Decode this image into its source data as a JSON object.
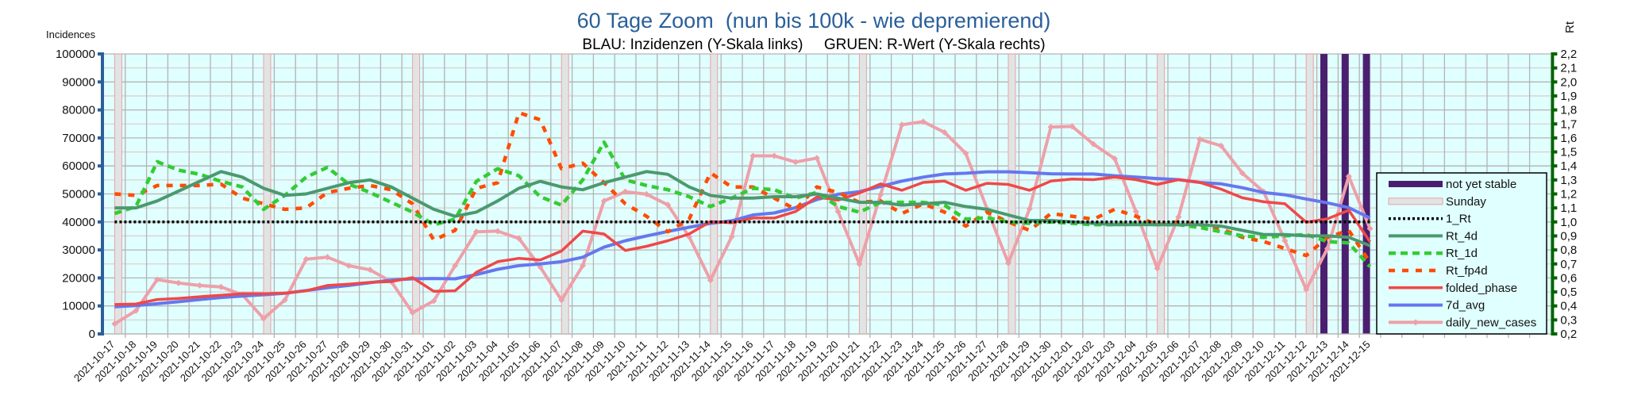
{
  "chart_data": {
    "type": "line",
    "title": "60 Tage Zoom  (nun bis 100k - wie depremierend)",
    "subtitle": "BLAU: Inzidenzen (Y-Skala links)     GRUEN: R-Wert (Y-Skala rechts)",
    "ylabel_left": "Incidences",
    "ylabel_right": "Rt",
    "ylim_left": [
      0,
      100000
    ],
    "ylim_right": [
      0.2,
      2.2
    ],
    "yticks_left": [
      "0",
      "10000",
      "20000",
      "30000",
      "40000",
      "50000",
      "60000",
      "70000",
      "80000",
      "90000",
      "100000"
    ],
    "yticks_right": [
      "0,2",
      "0,3",
      "0,4",
      "0,5",
      "0,6",
      "0,7",
      "0,8",
      "0,9",
      "1,0",
      "1,1",
      "1,2",
      "1,3",
      "1,4",
      "1,5",
      "1,6",
      "1,7",
      "1,8",
      "1,9",
      "2,0",
      "2,1",
      "2,2"
    ],
    "grid": true,
    "legend_position": "right",
    "extra_empty_categories": 8,
    "categories": [
      "2021-10-17",
      "2021-10-18",
      "2021-10-19",
      "2021-10-20",
      "2021-10-21",
      "2021-10-22",
      "2021-10-23",
      "2021-10-24",
      "2021-10-25",
      "2021-10-26",
      "2021-10-27",
      "2021-10-28",
      "2021-10-29",
      "2021-10-30",
      "2021-10-31",
      "2021-11-01",
      "2021-11-02",
      "2021-11-03",
      "2021-11-04",
      "2021-11-05",
      "2021-11-06",
      "2021-11-07",
      "2021-11-08",
      "2021-11-09",
      "2021-11-10",
      "2021-11-11",
      "2021-11-12",
      "2021-11-13",
      "2021-11-14",
      "2021-11-15",
      "2021-11-16",
      "2021-11-17",
      "2021-11-18",
      "2021-11-19",
      "2021-11-20",
      "2021-11-21",
      "2021-11-22",
      "2021-11-23",
      "2021-11-24",
      "2021-11-25",
      "2021-11-26",
      "2021-11-27",
      "2021-11-28",
      "2021-11-29",
      "2021-11-30",
      "2021-12-01",
      "2021-12-02",
      "2021-12-03",
      "2021-12-04",
      "2021-12-05",
      "2021-12-06",
      "2021-12-07",
      "2021-12-08",
      "2021-12-09",
      "2021-12-10",
      "2021-12-11",
      "2021-12-12",
      "2021-12-13",
      "2021-12-14",
      "2021-12-15"
    ],
    "bars": [
      {
        "name": "not yet stable",
        "color": "#4b1f6f",
        "axis": "left",
        "categories": [
          "2021-12-13",
          "2021-12-14",
          "2021-12-15"
        ],
        "value": 100000
      },
      {
        "name": "Sunday",
        "color": "#e0e4e4",
        "edge": "#f0a0a0",
        "axis": "left",
        "categories": [
          "2021-10-17",
          "2021-10-24",
          "2021-10-31",
          "2021-11-07",
          "2021-11-14",
          "2021-11-21",
          "2021-11-28",
          "2021-12-05",
          "2021-12-12"
        ],
        "value": 100000
      }
    ],
    "series": [
      {
        "name": "1_Rt",
        "axis": "right",
        "color": "#000000",
        "style": "dotted",
        "values": [
          1,
          1,
          1,
          1,
          1,
          1,
          1,
          1,
          1,
          1,
          1,
          1,
          1,
          1,
          1,
          1,
          1,
          1,
          1,
          1,
          1,
          1,
          1,
          1,
          1,
          1,
          1,
          1,
          1,
          1,
          1,
          1,
          1,
          1,
          1,
          1,
          1,
          1,
          1,
          1,
          1,
          1,
          1,
          1,
          1,
          1,
          1,
          1,
          1,
          1,
          1,
          1,
          1,
          1,
          1,
          1,
          1,
          1,
          1,
          1
        ]
      },
      {
        "name": "Rt_4d",
        "axis": "right",
        "color": "#4a9a6e",
        "style": "solid",
        "values": [
          1.1,
          1.1,
          1.15,
          1.22,
          1.29,
          1.36,
          1.32,
          1.24,
          1.19,
          1.2,
          1.24,
          1.28,
          1.3,
          1.25,
          1.17,
          1.09,
          1.04,
          1.07,
          1.15,
          1.24,
          1.29,
          1.25,
          1.23,
          1.28,
          1.32,
          1.36,
          1.34,
          1.25,
          1.19,
          1.17,
          1.17,
          1.18,
          1.18,
          1.2,
          1.17,
          1.14,
          1.14,
          1.12,
          1.13,
          1.14,
          1.11,
          1.09,
          1.05,
          1.01,
          1.01,
          1.0,
          0.99,
          0.98,
          0.98,
          0.98,
          0.98,
          0.98,
          0.97,
          0.94,
          0.91,
          0.91,
          0.9,
          0.9,
          0.89,
          0.83
        ]
      },
      {
        "name": "Rt_1d",
        "axis": "right",
        "color": "#33cc33",
        "style": "dashed",
        "values": [
          1.06,
          1.11,
          1.43,
          1.37,
          1.34,
          1.29,
          1.25,
          1.09,
          1.19,
          1.32,
          1.39,
          1.27,
          1.21,
          1.14,
          1.07,
          0.98,
          1.02,
          1.29,
          1.38,
          1.33,
          1.18,
          1.12,
          1.3,
          1.57,
          1.3,
          1.26,
          1.23,
          1.18,
          1.11,
          1.17,
          1.24,
          1.23,
          1.17,
          1.21,
          1.11,
          1.07,
          1.14,
          1.14,
          1.14,
          1.12,
          1.02,
          1.03,
          1.0,
          0.99,
          1.0,
          0.99,
          0.98,
          0.98,
          0.99,
          0.98,
          0.98,
          0.96,
          0.93,
          0.9,
          0.89,
          0.9,
          0.91,
          0.86,
          0.85,
          0.68
        ]
      },
      {
        "name": "Rt_fp4d",
        "axis": "right",
        "color": "#ff4c00",
        "style": "dashed-wide",
        "values": [
          1.2,
          1.19,
          1.26,
          1.26,
          1.26,
          1.27,
          1.17,
          1.13,
          1.09,
          1.1,
          1.21,
          1.24,
          1.26,
          1.23,
          1.13,
          0.87,
          0.94,
          1.24,
          1.28,
          1.78,
          1.73,
          1.38,
          1.42,
          1.28,
          1.13,
          1.04,
          0.93,
          1.02,
          1.35,
          1.25,
          1.25,
          1.17,
          1.09,
          1.25,
          1.21,
          1.14,
          1.15,
          1.06,
          1.13,
          1.07,
          0.97,
          1.07,
          1.0,
          0.94,
          1.06,
          1.04,
          1.02,
          1.09,
          1.04,
          0.98,
          1.0,
          0.98,
          0.95,
          0.89,
          0.86,
          0.81,
          0.76,
          0.89,
          0.94,
          0.71
        ]
      },
      {
        "name": "folded_phase",
        "axis": "left",
        "color": "#f04848",
        "style": "solid",
        "values": [
          10500,
          10700,
          12300,
          12700,
          13300,
          13800,
          14400,
          14400,
          14600,
          15400,
          17300,
          17800,
          18400,
          18700,
          20100,
          15200,
          15400,
          22000,
          25800,
          27000,
          26400,
          29600,
          36700,
          35700,
          29800,
          31300,
          33300,
          35700,
          40100,
          39700,
          41400,
          41400,
          43700,
          48900,
          47800,
          50300,
          53600,
          51300,
          54100,
          54600,
          51300,
          53800,
          53400,
          51300,
          54600,
          55300,
          55100,
          56000,
          55100,
          53400,
          55100,
          54100,
          51700,
          48600,
          47200,
          46500,
          39900,
          41100,
          44200,
          32900
        ]
      },
      {
        "name": "7d_avg",
        "axis": "left",
        "color": "#6677ee",
        "style": "solid",
        "values": [
          9700,
          10100,
          10800,
          11500,
          12300,
          13000,
          13500,
          14000,
          14500,
          15500,
          16500,
          17300,
          18300,
          19200,
          19700,
          19800,
          19700,
          21200,
          23100,
          24400,
          25000,
          25800,
          27400,
          31000,
          33300,
          35000,
          36600,
          38100,
          39500,
          40400,
          42500,
          43200,
          45100,
          48000,
          49900,
          50800,
          52700,
          54600,
          56000,
          57100,
          57400,
          57900,
          57900,
          57600,
          57200,
          57100,
          57100,
          56500,
          56000,
          55500,
          55100,
          54100,
          53600,
          52200,
          50500,
          49700,
          48200,
          46800,
          45100,
          41400
        ]
      },
      {
        "name": "daily_new_cases",
        "axis": "left",
        "color": "#eea0a8",
        "style": "solid-marker",
        "values": [
          3600,
          8300,
          19400,
          18200,
          17300,
          16800,
          14000,
          5500,
          12100,
          26700,
          27400,
          24400,
          22900,
          18700,
          7600,
          11800,
          24400,
          36500,
          36700,
          34100,
          23900,
          12100,
          24400,
          47500,
          50800,
          49900,
          46100,
          34700,
          19200,
          34700,
          63600,
          63600,
          61400,
          62800,
          43700,
          25000,
          49800,
          74700,
          75800,
          72000,
          64500,
          44700,
          25300,
          44700,
          73900,
          74100,
          67800,
          62600,
          43700,
          23400,
          41800,
          69500,
          67200,
          57400,
          50800,
          33300,
          15900,
          30500,
          56300,
          37600
        ]
      }
    ],
    "legend": [
      "not yet stable",
      "Sunday",
      "1_Rt",
      "Rt_4d",
      "Rt_1d",
      "Rt_fp4d",
      "folded_phase",
      "7d_avg",
      "daily_new_cases"
    ]
  }
}
